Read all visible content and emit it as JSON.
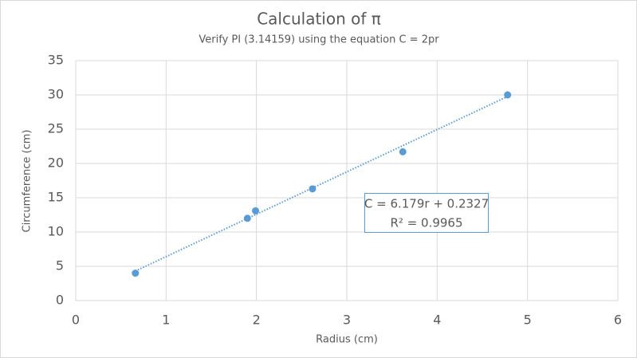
{
  "chart_data": {
    "type": "scatter",
    "title": "Calculation of π",
    "subtitle": "Verify PI (3.14159) using the equation  C = 2pr",
    "x_label": "Radius (cm)",
    "y_label": "Circumference (cm)",
    "x": [
      0.66,
      1.9,
      1.99,
      2.62,
      3.62,
      4.78
    ],
    "series": [
      {
        "name": "Circumference",
        "color": "#5b9bd5",
        "values": [
          4.0,
          12.0,
          13.1,
          16.3,
          21.7,
          30.0
        ]
      }
    ],
    "xlim": [
      0,
      6
    ],
    "xticks": [
      0,
      1,
      2,
      3,
      4,
      5,
      6
    ],
    "ylim": [
      0,
      35
    ],
    "yticks": [
      0,
      5,
      10,
      15,
      20,
      25,
      30,
      35
    ],
    "grid": true,
    "trendline": {
      "slope": 6.179,
      "intercept": 0.2327,
      "equation": "C = 6.179r + 0.2327",
      "r_squared": "R² = 0.9965"
    }
  }
}
